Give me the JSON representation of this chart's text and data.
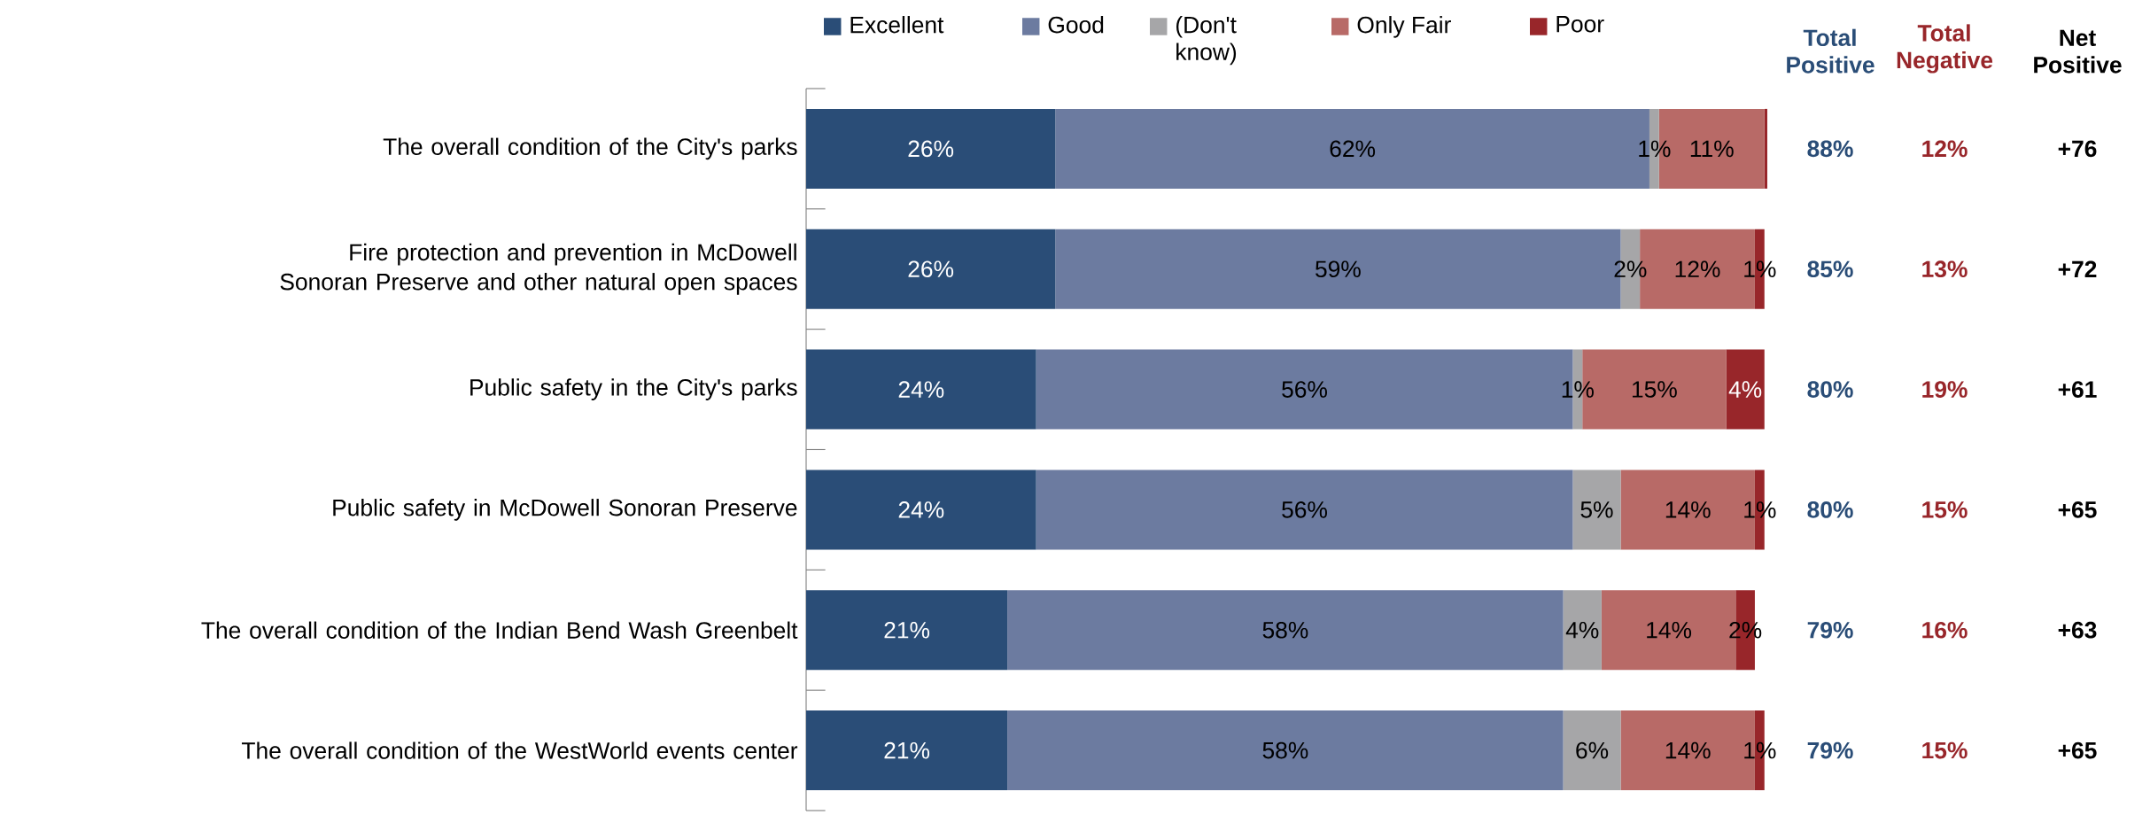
{
  "chart_data": {
    "type": "bar",
    "orientation": "horizontal",
    "stacked": true,
    "legend": "top",
    "categories": [
      "The overall condition of the City's parks",
      "Fire protection and prevention in McDowell Sonoran Preserve and other natural open spaces",
      "Public safety in the City's parks",
      "Public safety in McDowell Sonoran Preserve",
      "The overall condition of the Indian Bend Wash Greenbelt",
      "The overall condition of the WestWorld events center"
    ],
    "series": [
      {
        "name": "Excellent",
        "color": "#2a4d77",
        "values": [
          26,
          26,
          24,
          24,
          21,
          21
        ],
        "value_labels": [
          "26%",
          "26%",
          "24%",
          "24%",
          "21%",
          "21%"
        ]
      },
      {
        "name": "Good",
        "color": "#6c7ba0",
        "values": [
          62,
          59,
          56,
          56,
          58,
          58
        ],
        "value_labels": [
          "62%",
          "59%",
          "56%",
          "56%",
          "58%",
          "58%"
        ]
      },
      {
        "name": "(Don't know)",
        "color": "#a6a6a8",
        "values": [
          1,
          2,
          1,
          5,
          4,
          6
        ],
        "value_labels": [
          "1%",
          "2%",
          "1%",
          "5%",
          "4%",
          "6%"
        ]
      },
      {
        "name": "Only Fair",
        "color": "#b86a67",
        "values": [
          11,
          12,
          15,
          14,
          14,
          14
        ],
        "value_labels": [
          "11%",
          "12%",
          "15%",
          "14%",
          "14%",
          "14%"
        ]
      },
      {
        "name": "Poor",
        "color": "#98262a",
        "values": [
          0.3,
          1,
          4,
          1,
          2,
          1
        ],
        "value_labels": [
          null,
          "1%",
          "4%",
          "1%",
          "2%",
          "1%"
        ]
      }
    ],
    "annotations": [
      "Total Positive",
      "Total Negative",
      "Net Positive",
      "88%",
      "12%",
      "+76",
      "85%",
      "13%",
      "+72",
      "80%",
      "19%",
      "+61",
      "80%",
      "15%",
      "+65",
      "79%",
      "16%",
      "+63",
      "79%",
      "15%",
      "+65"
    ]
  }
}
